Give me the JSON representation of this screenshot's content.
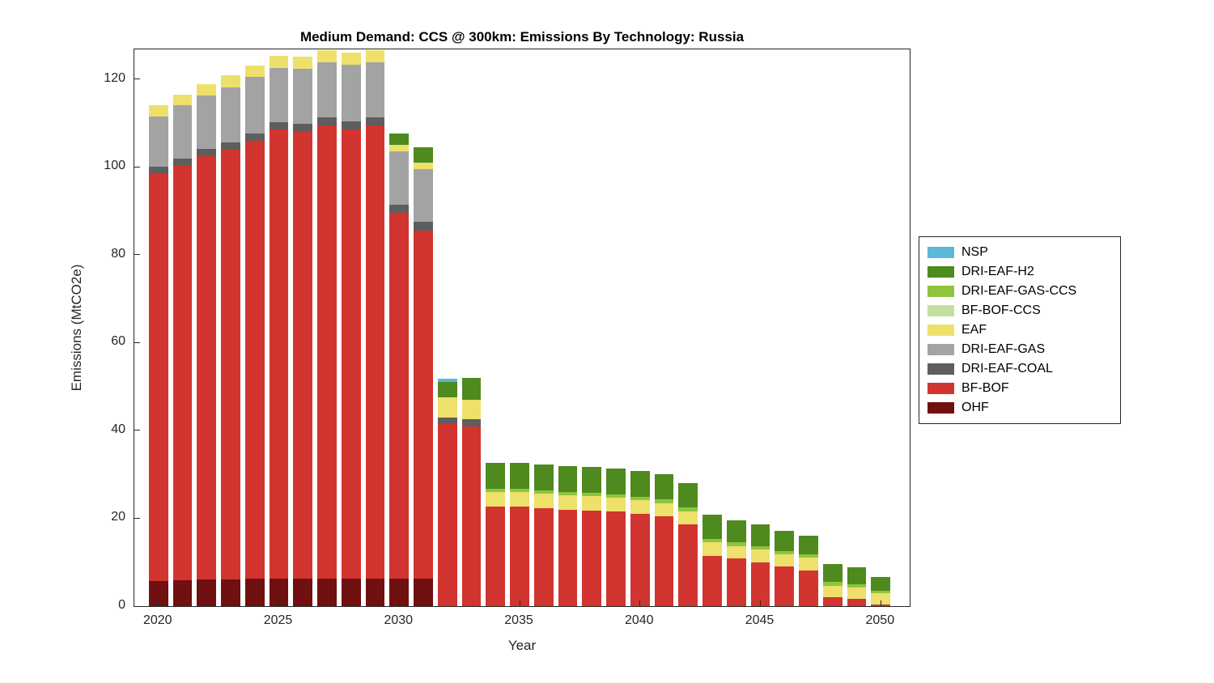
{
  "chart_data": {
    "type": "bar",
    "stacked": true,
    "title": "Medium Demand: CCS @ 300km: Emissions By Technology: Russia",
    "xlabel": "Year",
    "ylabel": "Emissions (MtCO2e)",
    "xlim": [
      2019.0,
      2051.2
    ],
    "ylim": [
      0,
      126.8
    ],
    "xticks": [
      2020,
      2025,
      2030,
      2035,
      2040,
      2045,
      2050
    ],
    "yticks": [
      0,
      20,
      40,
      60,
      80,
      100,
      120
    ],
    "bar_width": 0.8,
    "grid": false,
    "legend_position": "right-outside",
    "legend": [
      "NSP",
      "DRI-EAF-H2",
      "DRI-EAF-GAS-CCS",
      "BF-BOF-CCS",
      "EAF",
      "DRI-EAF-GAS",
      "DRI-EAF-COAL",
      "BF-BOF",
      "OHF"
    ],
    "categories": [
      2020,
      2021,
      2022,
      2023,
      2024,
      2025,
      2026,
      2027,
      2028,
      2029,
      2030,
      2031,
      2032,
      2033,
      2034,
      2035,
      2036,
      2037,
      2038,
      2039,
      2040,
      2041,
      2042,
      2043,
      2044,
      2045,
      2046,
      2047,
      2048,
      2049,
      2050
    ],
    "series": [
      {
        "name": "OHF",
        "color": "#701010",
        "values": [
          5.8,
          5.9,
          6.0,
          6.1,
          6.2,
          6.2,
          6.2,
          6.3,
          6.3,
          6.3,
          6.3,
          6.3,
          0,
          0,
          0,
          0,
          0,
          0,
          0,
          0,
          0,
          0,
          0,
          0,
          0,
          0,
          0,
          0,
          0,
          0,
          0
        ]
      },
      {
        "name": "BF-BOF",
        "color": "#D23430",
        "values": [
          92.7,
          94.6,
          96.5,
          97.9,
          99.8,
          102.3,
          101.8,
          103.2,
          102.2,
          103.2,
          83.2,
          79.2,
          41.5,
          41.0,
          22.7,
          22.6,
          22.3,
          22.0,
          21.8,
          21.5,
          21.0,
          20.4,
          18.6,
          11.5,
          10.8,
          10.0,
          9.0,
          8.2,
          2.0,
          1.6,
          0.3
        ]
      },
      {
        "name": "DRI-EAF-COAL",
        "color": "#5E5E5E",
        "values": [
          1.5,
          1.5,
          1.6,
          1.6,
          1.7,
          1.8,
          1.8,
          1.8,
          1.9,
          1.9,
          1.9,
          2.0,
          1.5,
          1.5,
          0,
          0,
          0,
          0,
          0,
          0,
          0,
          0,
          0,
          0,
          0,
          0,
          0,
          0,
          0,
          0,
          0
        ]
      },
      {
        "name": "DRI-EAF-GAS",
        "color": "#A3A3A3",
        "values": [
          11.5,
          12.0,
          12.2,
          12.6,
          12.8,
          12.2,
          12.5,
          12.5,
          12.9,
          12.4,
          12.1,
          12.0,
          0,
          0,
          0,
          0,
          0,
          0,
          0,
          0,
          0,
          0,
          0,
          0,
          0,
          0,
          0,
          0,
          0,
          0,
          0
        ]
      },
      {
        "name": "EAF",
        "color": "#EDE06B",
        "values": [
          2.5,
          2.5,
          2.6,
          2.7,
          2.7,
          2.8,
          2.8,
          2.8,
          2.8,
          2.9,
          1.5,
          1.5,
          4.5,
          4.5,
          3.3,
          3.3,
          3.3,
          3.2,
          3.2,
          3.2,
          3.1,
          3.1,
          3.0,
          3.0,
          2.9,
          2.9,
          2.8,
          2.8,
          2.7,
          2.6,
          2.6
        ]
      },
      {
        "name": "BF-BOF-CCS",
        "color": "#C3E09F",
        "values": [
          0,
          0,
          0,
          0,
          0,
          0,
          0,
          0,
          0,
          0,
          0,
          0,
          0,
          0,
          0,
          0,
          0,
          0,
          0,
          0,
          0,
          0,
          0,
          0,
          0,
          0,
          0,
          0,
          0,
          0,
          0
        ]
      },
      {
        "name": "DRI-EAF-GAS-CCS",
        "color": "#8FC43C",
        "values": [
          0,
          0,
          0,
          0,
          0,
          0,
          0,
          0,
          0,
          0,
          0,
          0,
          0,
          0,
          0.8,
          0.8,
          0.8,
          0.8,
          0.8,
          0.8,
          0.8,
          0.8,
          0.8,
          0.8,
          0.8,
          0.8,
          0.8,
          0.8,
          0.8,
          0.8,
          0.6
        ]
      },
      {
        "name": "DRI-EAF-H2",
        "color": "#4E8A1E",
        "values": [
          0,
          0,
          0,
          0,
          0,
          0,
          0,
          0,
          0,
          0,
          2.7,
          3.5,
          3.5,
          5.0,
          5.9,
          5.9,
          5.9,
          5.9,
          5.9,
          5.8,
          5.8,
          5.8,
          5.7,
          5.6,
          5.0,
          5.0,
          4.5,
          4.3,
          4.0,
          3.8,
          3.2
        ]
      },
      {
        "name": "NSP",
        "color": "#5BB8D7",
        "values": [
          0,
          0,
          0,
          0,
          0,
          0,
          0,
          0,
          0,
          0,
          0,
          0,
          0.8,
          0,
          0,
          0,
          0,
          0,
          0,
          0,
          0,
          0,
          0,
          0,
          0,
          0,
          0,
          0,
          0,
          0,
          0
        ]
      }
    ]
  }
}
